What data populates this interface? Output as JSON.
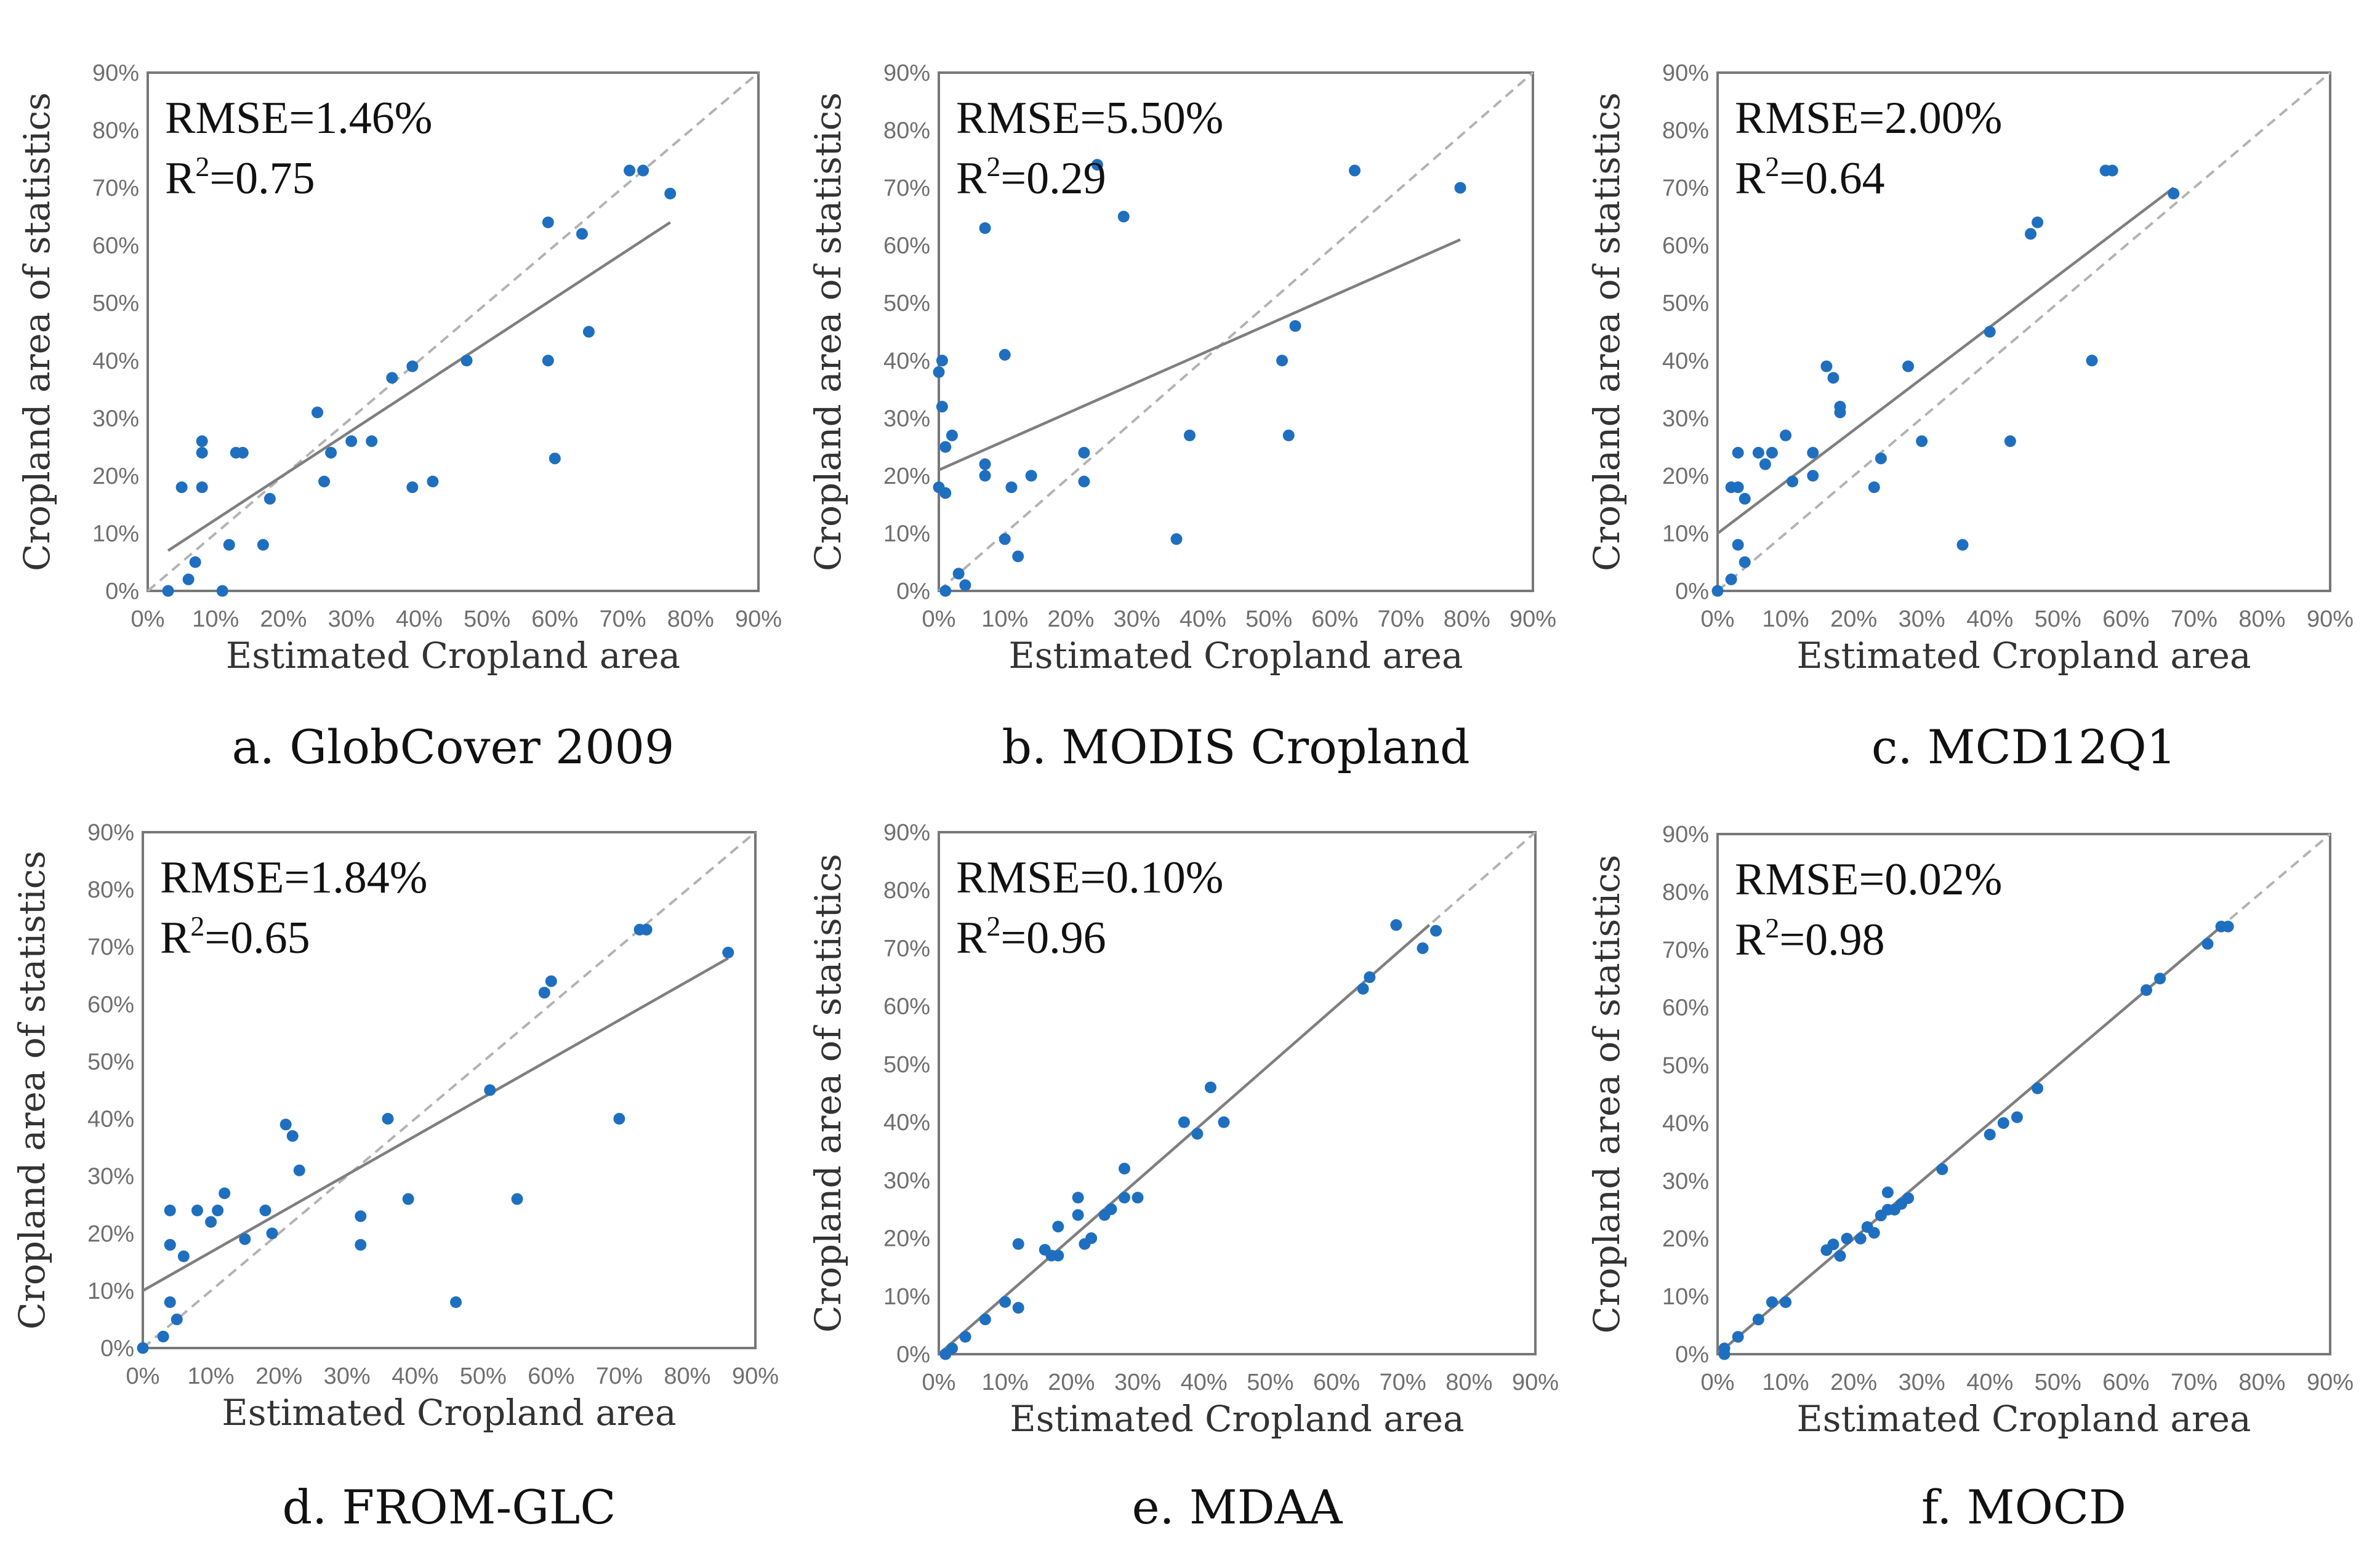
{
  "figure": {
    "point_color": "#1f6fc0",
    "fit_color": "#7f7f7f",
    "identity_color": "#b3b3b3",
    "frame_color": "#777777"
  },
  "chart_data": [
    {
      "type": "scatter",
      "caption": "a. GlobCover 2009",
      "rmse": "RMSE=1.46%",
      "r2_prefix": "R",
      "r2_sup": "2",
      "r2_value": "=0.75",
      "xlabel": "Estimated Cropland area",
      "ylabel": "Cropland area of statistics",
      "xlim": [
        0,
        90
      ],
      "ylim": [
        0,
        90
      ],
      "ticks": [
        0,
        10,
        20,
        30,
        40,
        50,
        60,
        70,
        80,
        90
      ],
      "tick_suffix": "%",
      "fit_line": [
        [
          3,
          7
        ],
        [
          77,
          64
        ]
      ],
      "identity_line": true,
      "x": [
        3,
        6,
        7,
        11,
        12,
        17,
        5,
        8,
        8,
        18,
        26,
        27,
        30,
        33,
        39,
        42,
        13,
        14,
        8,
        25,
        36,
        39,
        47,
        59,
        60,
        65,
        59,
        64,
        71,
        73,
        77
      ],
      "y": [
        0,
        2,
        5,
        0,
        8,
        8,
        18,
        18,
        24,
        16,
        19,
        24,
        26,
        26,
        18,
        19,
        24,
        24,
        26,
        31,
        37,
        39,
        40,
        40,
        23,
        45,
        64,
        62,
        73,
        73,
        69
      ]
    },
    {
      "type": "scatter",
      "caption": "b. MODIS Cropland",
      "rmse": "RMSE=5.50%",
      "r2_prefix": "R",
      "r2_sup": "2",
      "r2_value": "=0.29",
      "xlabel": "Estimated Cropland area",
      "ylabel": "Cropland area of statistics",
      "xlim": [
        0,
        90
      ],
      "ylim": [
        0,
        90
      ],
      "ticks": [
        0,
        10,
        20,
        30,
        40,
        50,
        60,
        70,
        80,
        90
      ],
      "tick_suffix": "%",
      "fit_line": [
        [
          0,
          21
        ],
        [
          79,
          61
        ]
      ],
      "identity_line": true,
      "x": [
        1,
        3,
        4,
        10,
        12,
        0,
        1,
        1,
        2,
        0.5,
        0,
        0.5,
        7,
        7,
        11,
        14,
        22,
        22,
        10,
        7,
        24,
        28,
        36,
        38,
        52,
        54,
        53,
        63,
        79
      ],
      "y": [
        0,
        3,
        1,
        9,
        6,
        18,
        17,
        25,
        27,
        32,
        38,
        40,
        20,
        22,
        18,
        20,
        24,
        19,
        41,
        63,
        74,
        65,
        9,
        27,
        40,
        46,
        27,
        73,
        70
      ]
    },
    {
      "type": "scatter",
      "caption": "c. MCD12Q1",
      "rmse": "RMSE=2.00%",
      "r2_prefix": "R",
      "r2_sup": "2",
      "r2_value": "=0.64",
      "xlabel": "Estimated Cropland area",
      "ylabel": "Cropland area of statistics",
      "xlim": [
        0,
        90
      ],
      "ylim": [
        0,
        90
      ],
      "ticks": [
        0,
        10,
        20,
        30,
        40,
        50,
        60,
        70,
        80,
        90
      ],
      "tick_suffix": "%",
      "fit_line": [
        [
          0,
          10
        ],
        [
          67,
          70
        ]
      ],
      "identity_line": true,
      "x": [
        0,
        2,
        3,
        4,
        3,
        2,
        4,
        3,
        6,
        7,
        8,
        10,
        11,
        14,
        14,
        16,
        17,
        18,
        18,
        23,
        24,
        28,
        30,
        36,
        40,
        43,
        55,
        46,
        47,
        57,
        58,
        67
      ],
      "y": [
        0,
        2,
        8,
        5,
        18,
        18,
        16,
        24,
        24,
        22,
        24,
        27,
        19,
        24,
        20,
        39,
        37,
        31,
        32,
        18,
        23,
        39,
        26,
        8,
        45,
        26,
        40,
        62,
        64,
        73,
        73,
        69
      ]
    },
    {
      "type": "scatter",
      "caption": "d. FROM-GLC",
      "rmse": "RMSE=1.84%",
      "r2_prefix": "R",
      "r2_sup": "2",
      "r2_value": "=0.65",
      "xlabel": "Estimated Cropland area",
      "ylabel": "Cropland area of statistics",
      "xlim": [
        0,
        90
      ],
      "ylim": [
        0,
        90
      ],
      "ticks": [
        0,
        10,
        20,
        30,
        40,
        50,
        60,
        70,
        80,
        90
      ],
      "tick_suffix": "%",
      "fit_line": [
        [
          0,
          10
        ],
        [
          86,
          68
        ]
      ],
      "identity_line": true,
      "x": [
        0,
        3,
        5,
        4,
        4,
        4,
        4,
        6,
        8,
        10,
        11,
        12,
        15,
        18,
        19,
        21,
        22,
        23,
        32,
        32,
        36,
        39,
        46,
        51,
        55,
        59,
        60,
        70,
        73,
        74,
        86
      ],
      "y": [
        0,
        2,
        5,
        8,
        18,
        18,
        24,
        16,
        24,
        22,
        24,
        27,
        19,
        24,
        20,
        39,
        37,
        31,
        23,
        18,
        40,
        26,
        8,
        45,
        26,
        62,
        64,
        40,
        73,
        73,
        69
      ]
    },
    {
      "type": "scatter",
      "caption": "e. MDAA",
      "rmse": "RMSE=0.10%",
      "r2_prefix": "R",
      "r2_sup": "2",
      "r2_value": "=0.96",
      "xlabel": "Estimated Cropland area",
      "ylabel": "Cropland area of statistics",
      "xlim": [
        0,
        90
      ],
      "ylim": [
        0,
        90
      ],
      "ticks": [
        0,
        10,
        20,
        30,
        40,
        50,
        60,
        70,
        80,
        90
      ],
      "tick_suffix": "%",
      "fit_line": [
        [
          0,
          0
        ],
        [
          74,
          74
        ]
      ],
      "identity_line": true,
      "x": [
        1,
        2,
        4,
        7,
        10,
        12,
        12,
        16,
        17,
        18,
        18,
        21,
        21,
        22,
        23,
        25,
        26,
        28,
        28,
        30,
        37,
        39,
        41,
        43,
        64,
        65,
        69,
        73,
        75
      ],
      "y": [
        0,
        1,
        3,
        6,
        9,
        8,
        19,
        18,
        17,
        22,
        17,
        27,
        24,
        19,
        20,
        24,
        25,
        27,
        32,
        27,
        40,
        38,
        46,
        40,
        63,
        65,
        74,
        70,
        73
      ]
    },
    {
      "type": "scatter",
      "caption": "f. MOCD",
      "rmse": "RMSE=0.02%",
      "r2_prefix": "R",
      "r2_sup": "2",
      "r2_value": "=0.98",
      "xlabel": "Estimated Cropland area",
      "ylabel": "Cropland area of statistics",
      "xlim": [
        0,
        90
      ],
      "ylim": [
        0,
        90
      ],
      "ticks": [
        0,
        10,
        20,
        30,
        40,
        50,
        60,
        70,
        80,
        90
      ],
      "tick_suffix": "%",
      "fit_line": [
        [
          0,
          0
        ],
        [
          74,
          74
        ]
      ],
      "identity_line": true,
      "x": [
        1,
        1,
        3,
        6,
        8,
        10,
        16,
        17,
        18,
        19,
        21,
        22,
        23,
        24,
        25,
        25,
        26,
        27,
        28,
        33,
        40,
        42,
        44,
        47,
        63,
        65,
        72,
        74,
        75
      ],
      "y": [
        0,
        1,
        3,
        6,
        9,
        9,
        18,
        19,
        17,
        20,
        20,
        22,
        21,
        24,
        25,
        28,
        25,
        26,
        27,
        32,
        38,
        40,
        41,
        46,
        63,
        65,
        71,
        74,
        74
      ]
    }
  ]
}
